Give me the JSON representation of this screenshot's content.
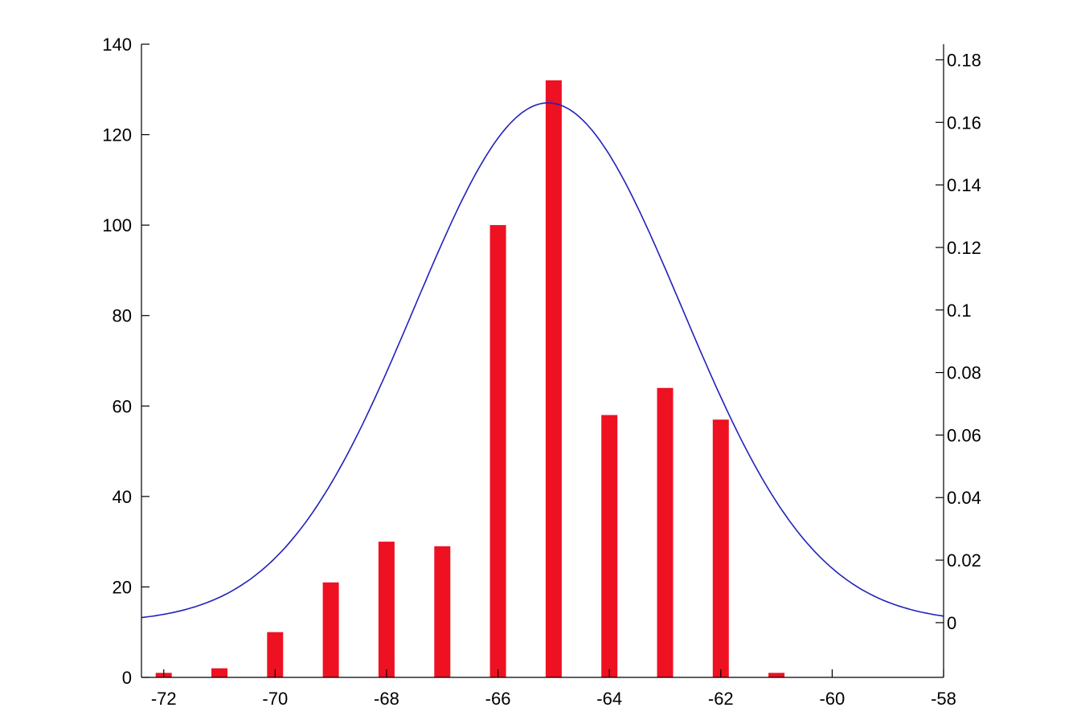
{
  "chart_data": {
    "type": "bar",
    "title": "",
    "xlabel": "",
    "ylabel": "",
    "xlim": [
      -72.4,
      -58
    ],
    "ylim": [
      0,
      140
    ],
    "y2lim": [
      -0.0175,
      0.185
    ],
    "x_ticks": [
      -72,
      -70,
      -68,
      -66,
      -64,
      -62,
      -60,
      -58
    ],
    "x_tick_labels": [
      "-72",
      "-70",
      "-68",
      "-66",
      "-64",
      "-62",
      "-60",
      "-58"
    ],
    "y_ticks": [
      0,
      20,
      40,
      60,
      80,
      100,
      120,
      140
    ],
    "y_tick_labels": [
      "0",
      "20",
      "40",
      "60",
      "80",
      "100",
      "120",
      "140"
    ],
    "y2_ticks": [
      0,
      0.02,
      0.04,
      0.06,
      0.08,
      0.1,
      0.12,
      0.14,
      0.16,
      0.18
    ],
    "y2_tick_labels": [
      "0",
      "0.02",
      "0.04",
      "0.06",
      "0.08",
      "0.1",
      "0.12",
      "0.14",
      "0.16",
      "0.18"
    ],
    "grid": false,
    "series": [
      {
        "type": "bar",
        "axis": "left",
        "color": "#ee1122",
        "x": [
          -72,
          -71,
          -70,
          -69,
          -68,
          -67,
          -66,
          -65,
          -64,
          -63,
          -62,
          -61
        ],
        "values": [
          1,
          2,
          10,
          21,
          30,
          29,
          100,
          132,
          58,
          64,
          57,
          1
        ]
      },
      {
        "type": "line",
        "axis": "right",
        "color": "#2222bb",
        "curve": "normal-pdf",
        "mean": -65.1,
        "sd": 2.4,
        "x_range": [
          -72.4,
          -58
        ]
      }
    ]
  }
}
